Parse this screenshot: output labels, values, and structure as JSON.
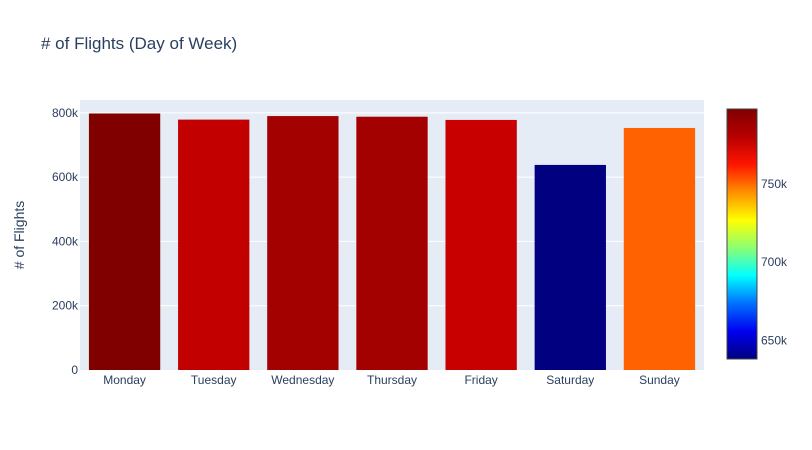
{
  "chart_data": {
    "type": "bar",
    "title": "# of Flights (Day of Week)",
    "xlabel": "",
    "ylabel": "# of Flights",
    "categories": [
      "Monday",
      "Tuesday",
      "Wednesday",
      "Thursday",
      "Friday",
      "Saturday",
      "Sunday"
    ],
    "values": [
      798000,
      779000,
      790000,
      788000,
      778000,
      638000,
      753000
    ],
    "ylim": [
      0,
      840000
    ],
    "yticks": [
      {
        "value": 0,
        "label": "0"
      },
      {
        "value": 200000,
        "label": "200k"
      },
      {
        "value": 400000,
        "label": "400k"
      },
      {
        "value": 600000,
        "label": "600k"
      },
      {
        "value": 800000,
        "label": "800k"
      }
    ],
    "bar_colors": [
      "#800000",
      "#c20000",
      "#a30000",
      "#a30000",
      "#c80000",
      "#000080",
      "#ff6200"
    ],
    "grid": true,
    "plot_background": "#e5ecf6",
    "colorbar": {
      "range": [
        638000,
        798000
      ],
      "ticks": [
        {
          "value": 650000,
          "label": "650k"
        },
        {
          "value": 700000,
          "label": "700k"
        },
        {
          "value": 750000,
          "label": "750k"
        }
      ],
      "colorscale": [
        "#000080",
        "#0000f0",
        "#0070ff",
        "#00ffff",
        "#8cff73",
        "#ffff00",
        "#ff9000",
        "#ff1500",
        "#b70000",
        "#800000"
      ]
    }
  }
}
